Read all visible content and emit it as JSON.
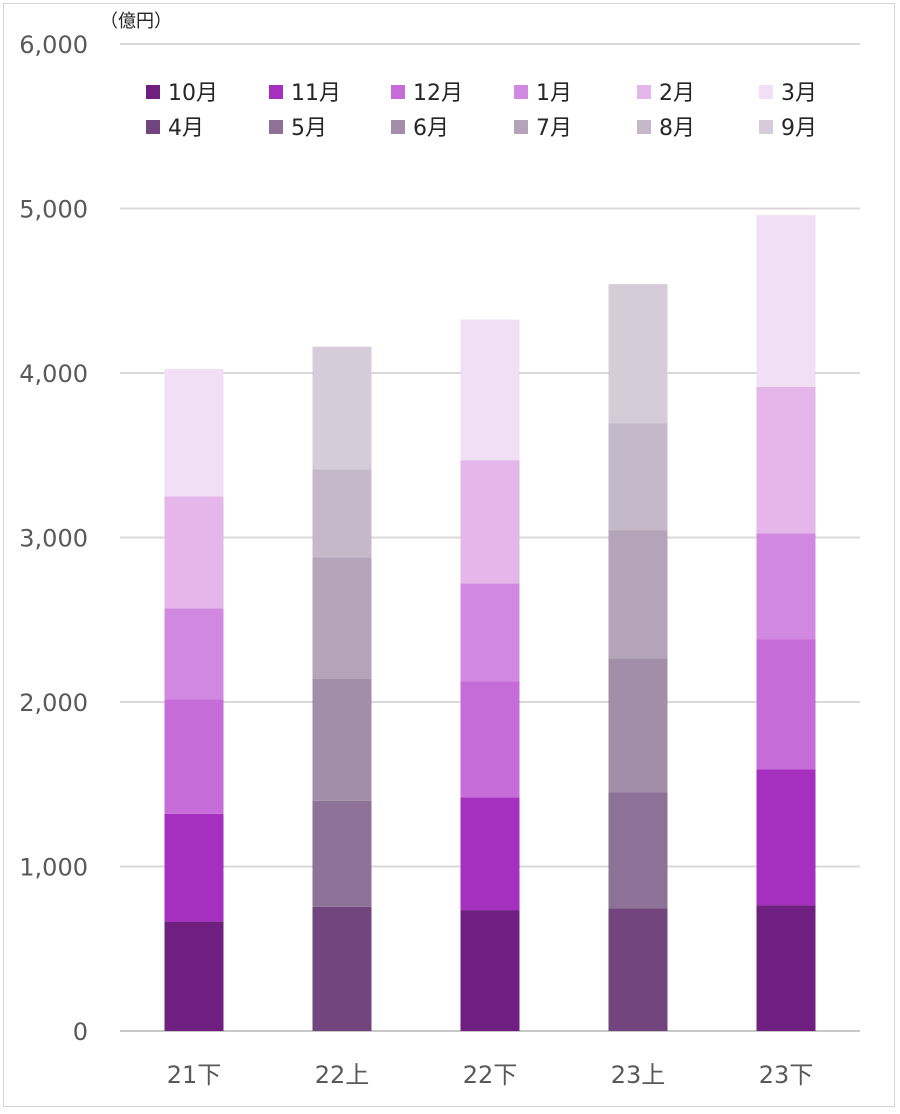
{
  "chart_data": {
    "type": "bar",
    "stacked": true,
    "unit_label": "（億円）",
    "categories": [
      "21下",
      "22上",
      "22下",
      "23上",
      "23下"
    ],
    "ylim": [
      0,
      6000
    ],
    "yticks": [
      0,
      1000,
      2000,
      3000,
      4000,
      5000,
      6000
    ],
    "ytick_labels": [
      "0",
      "1,000",
      "2,000",
      "3,000",
      "4,000",
      "5,000",
      "6,000"
    ],
    "grid": true,
    "legend_position": "top",
    "series": [
      {
        "name": "10月",
        "color": "#6f1f7f",
        "values": [
          665,
          null,
          735,
          null,
          765
        ]
      },
      {
        "name": "11月",
        "color": "#a52fbf",
        "values": [
          655,
          null,
          685,
          null,
          825
        ]
      },
      {
        "name": "12月",
        "color": "#c66cd8",
        "values": [
          695,
          null,
          705,
          null,
          790
        ]
      },
      {
        "name": "1月",
        "color": "#d188e0",
        "values": [
          555,
          null,
          595,
          null,
          645
        ]
      },
      {
        "name": "2月",
        "color": "#e4b6e9",
        "values": [
          680,
          null,
          750,
          null,
          890
        ]
      },
      {
        "name": "3月",
        "color": "#f1dff5",
        "values": [
          775,
          null,
          855,
          null,
          1045
        ]
      },
      {
        "name": "4月",
        "color": "#72457e",
        "values": [
          null,
          755,
          null,
          745,
          null
        ]
      },
      {
        "name": "5月",
        "color": "#8d7197",
        "values": [
          null,
          645,
          null,
          705,
          null
        ]
      },
      {
        "name": "6月",
        "color": "#a38ea9",
        "values": [
          null,
          740,
          null,
          815,
          null
        ]
      },
      {
        "name": "7月",
        "color": "#b4a4b9",
        "values": [
          null,
          740,
          null,
          780,
          null
        ]
      },
      {
        "name": "8月",
        "color": "#c5b8c9",
        "values": [
          null,
          535,
          null,
          650,
          null
        ]
      },
      {
        "name": "9月",
        "color": "#d6ccd9",
        "values": [
          null,
          745,
          null,
          845,
          null
        ]
      }
    ]
  }
}
